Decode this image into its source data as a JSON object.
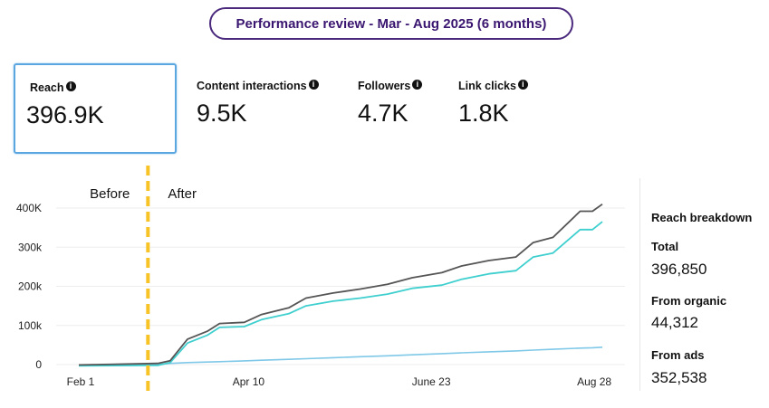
{
  "header": {
    "title": "Performance review - Mar - Aug 2025 (6 months)"
  },
  "metrics": [
    {
      "label": "Reach",
      "value": "396.9K",
      "selected": true
    },
    {
      "label": "Content interactions",
      "value": "9.5K"
    },
    {
      "label": "Followers",
      "value": "4.7K"
    },
    {
      "label": "Link clicks",
      "value": "1.8K"
    }
  ],
  "icons": {
    "info": "info-circle-icon"
  },
  "breakdown": {
    "title": "Reach breakdown",
    "total_label": "Total",
    "total_value": "396,850",
    "organic_label": "From organic",
    "organic_value": "44,312",
    "ads_label": "From ads",
    "ads_value": "352,538"
  },
  "chart_data": {
    "type": "line",
    "xlim": [
      "2025-02-01",
      "2025-09-01"
    ],
    "ylim": [
      0,
      400000
    ],
    "grid": true,
    "x_ticks": [
      {
        "date": "2025-02-01",
        "label": "Feb 1"
      },
      {
        "date": "2025-04-10",
        "label": "Apr 10"
      },
      {
        "date": "2025-06-23",
        "label": "June 23"
      },
      {
        "date": "2025-08-28",
        "label": "Aug 28"
      }
    ],
    "y_ticks": [
      {
        "value": 0,
        "label": "0"
      },
      {
        "value": 100000,
        "label": "100k"
      },
      {
        "value": 200000,
        "label": "200k"
      },
      {
        "value": 300000,
        "label": "300k"
      },
      {
        "value": 400000,
        "label": "400K"
      }
    ],
    "annotation": {
      "date": "2025-03-01",
      "before_label": "Before",
      "after_label": "After",
      "color": "#f7c325"
    },
    "x": [
      "2025-02-01",
      "2025-03-05",
      "2025-03-10",
      "2025-03-17",
      "2025-03-25",
      "2025-03-30",
      "2025-04-09",
      "2025-04-16",
      "2025-04-27",
      "2025-05-04",
      "2025-05-15",
      "2025-05-26",
      "2025-06-06",
      "2025-06-16",
      "2025-06-28",
      "2025-07-06",
      "2025-07-17",
      "2025-07-28",
      "2025-08-04",
      "2025-08-12",
      "2025-08-23",
      "2025-08-28",
      "2025-09-01"
    ],
    "series": [
      {
        "key": "total",
        "color": "#555555",
        "values": [
          -1000,
          3000,
          10000,
          65000,
          85000,
          105000,
          108000,
          128000,
          145000,
          170000,
          183000,
          193000,
          205000,
          222000,
          235000,
          252000,
          266000,
          275000,
          312000,
          325000,
          392000,
          392000,
          410000
        ]
      },
      {
        "key": "ads",
        "color": "#3fcfcf",
        "values": [
          -3000,
          -2000,
          5000,
          55000,
          75000,
          95000,
          97000,
          115000,
          130000,
          150000,
          162000,
          170000,
          180000,
          195000,
          203000,
          218000,
          232000,
          240000,
          275000,
          285000,
          345000,
          345000,
          365000
        ]
      },
      {
        "key": "organic",
        "color": "#7fc8e8",
        "values": [
          -2000,
          0,
          3000,
          5000,
          6500,
          7500,
          9500,
          11000,
          13500,
          15000,
          17500,
          20000,
          22500,
          25000,
          28000,
          30000,
          32500,
          35000,
          37000,
          39000,
          42000,
          43000,
          44312
        ]
      }
    ]
  }
}
